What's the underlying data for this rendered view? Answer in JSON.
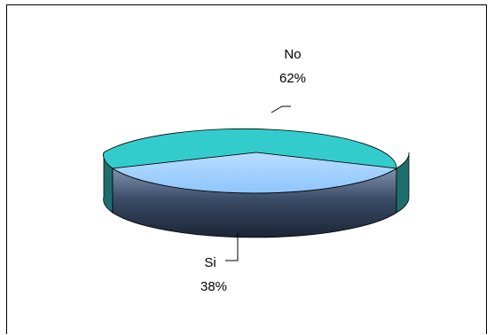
{
  "chart_data": {
    "type": "pie",
    "style": "3d",
    "title": "",
    "slices": [
      {
        "label": "No",
        "value": 62,
        "percent_label": "62%",
        "color": "#33CCCC"
      },
      {
        "label": "Si",
        "value": 38,
        "percent_label": "38%",
        "color": "#99CCFF"
      }
    ],
    "legend": "none",
    "data_labels": "outside-with-leader-lines",
    "side_color": "#3A4B66",
    "frame_border_color": "#000000"
  }
}
